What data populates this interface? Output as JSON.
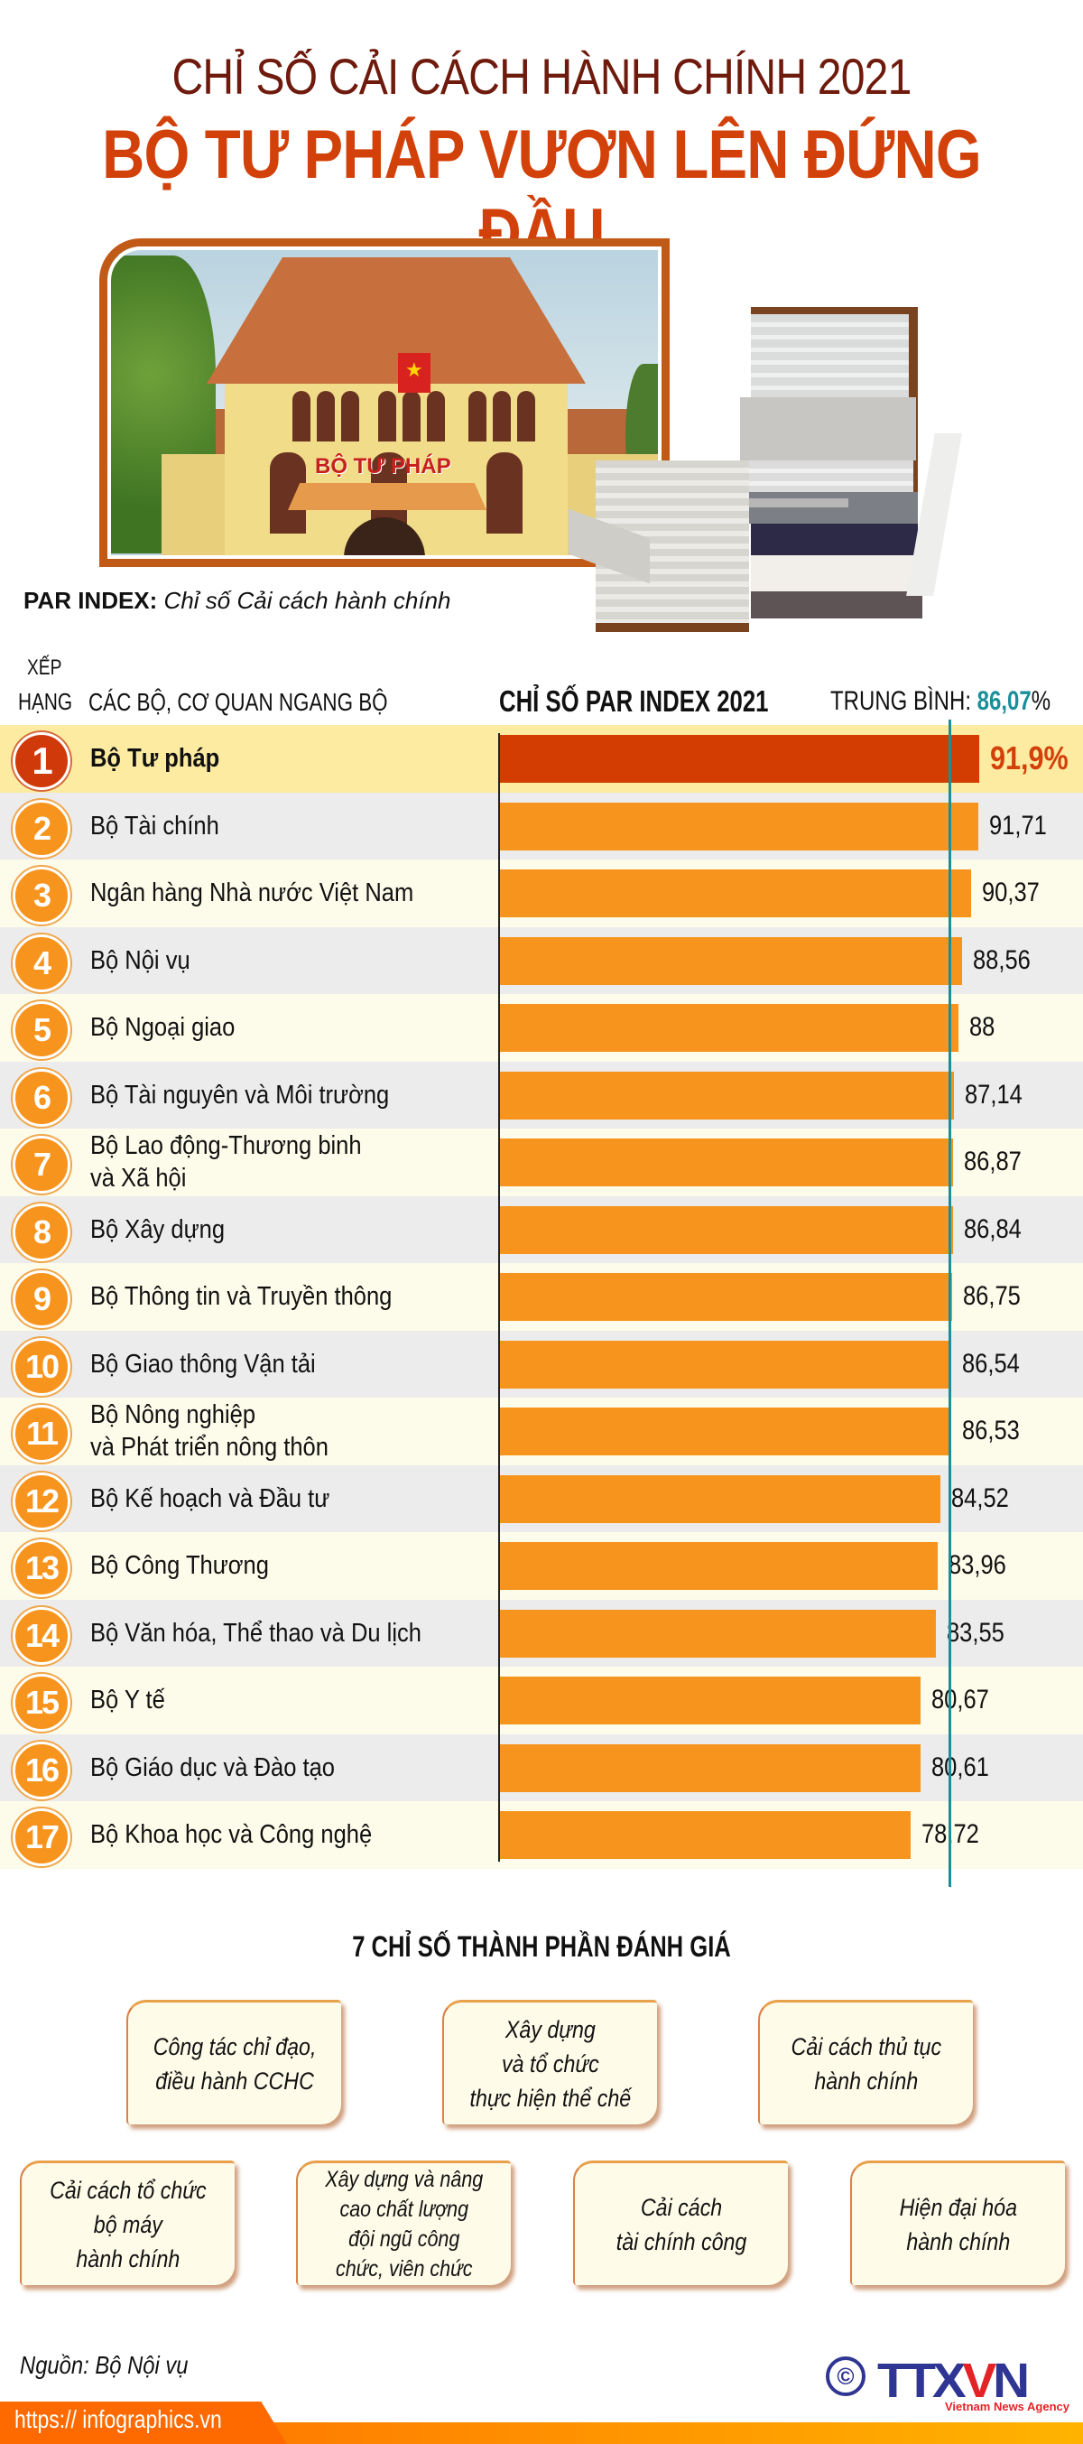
{
  "header": {
    "title_line1": "CHỈ SỐ CẢI CÁCH HÀNH CHÍNH 2021",
    "title_line2": "BỘ TƯ PHÁP VƯƠN LÊN ĐỨNG ĐẦU",
    "photo_sign": "BỘ TƯ PHÁP",
    "par_label_bold": "PAR INDEX:",
    "par_label_italic": "Chỉ số Cải cách hành chính"
  },
  "table": {
    "col_rank_line1": "XẾP",
    "col_rank_line2": "HẠNG",
    "col_name": "CÁC BỘ, CƠ QUAN NGANG BỘ",
    "col_chart": "CHỈ SỐ PAR INDEX 2021",
    "avg_label": "TRUNG BÌNH:",
    "avg_value": "86,07",
    "avg_unit": "%",
    "rows": [
      {
        "rank": "1",
        "name": "Bộ Tư pháp",
        "value_label": "91,9%"
      },
      {
        "rank": "2",
        "name": "Bộ Tài chính",
        "value_label": "91,71"
      },
      {
        "rank": "3",
        "name": "Ngân hàng Nhà nước Việt Nam",
        "value_label": "90,37"
      },
      {
        "rank": "4",
        "name": "Bộ Nội vụ",
        "value_label": "88,56"
      },
      {
        "rank": "5",
        "name": "Bộ Ngoại giao",
        "value_label": "88"
      },
      {
        "rank": "6",
        "name": "Bộ Tài nguyên và Môi trường",
        "value_label": "87,14"
      },
      {
        "rank": "7",
        "name": "Bộ Lao động-Thương binh\nvà Xã hội",
        "value_label": "86,87"
      },
      {
        "rank": "8",
        "name": "Bộ Xây dựng",
        "value_label": "86,84"
      },
      {
        "rank": "9",
        "name": "Bộ Thông tin và Truyền thông",
        "value_label": "86,75"
      },
      {
        "rank": "10",
        "name": "Bộ Giao thông Vận tải",
        "value_label": "86,54"
      },
      {
        "rank": "11",
        "name": "Bộ Nông nghiệp\nvà Phát triển nông thôn",
        "value_label": "86,53"
      },
      {
        "rank": "12",
        "name": "Bộ Kế hoạch và Đầu tư",
        "value_label": "84,52"
      },
      {
        "rank": "13",
        "name": "Bộ Công Thương",
        "value_label": "83,96"
      },
      {
        "rank": "14",
        "name": "Bộ Văn hóa, Thể thao và Du lịch",
        "value_label": "83,55"
      },
      {
        "rank": "15",
        "name": "Bộ Y tế",
        "value_label": "80,67"
      },
      {
        "rank": "16",
        "name": "Bộ Giáo dục và Đào tạo",
        "value_label": "80,61"
      },
      {
        "rank": "17",
        "name": "Bộ Khoa học và Công nghệ",
        "value_label": "78,72"
      }
    ]
  },
  "components": {
    "title": "7 CHỈ SỐ THÀNH PHẦN ĐÁNH GIÁ",
    "items": [
      "Công tác chỉ đạo,\nđiều hành CCHC",
      "Xây dựng\nvà tổ chức\nthực hiện thể chế",
      "Cải cách thủ tục\nhành chính",
      "Cải cách tổ chức\nbộ máy\nhành chính",
      "Xây dựng và nâng\ncao chất lượng\nđội ngũ công\nchức, viên chức",
      "Cải cách\ntài chính công",
      "Hiện đại hóa\nhành chính"
    ]
  },
  "footer": {
    "source": "Nguồn: Bộ Nội vụ",
    "url": "https:// infographics.vn",
    "logo_copyright": "©",
    "logo_text_a": "TTX",
    "logo_text_v": "V",
    "logo_text_b": "N",
    "logo_agency": "Vietnam News Agency"
  },
  "colors": {
    "title_dark": "#6e1a0c",
    "title_accent": "#d3410b",
    "bar_top": "#d43d01",
    "bar": "#f7941d",
    "average_line": "#1a8f9a",
    "row_highlight": "#fdeba1",
    "row_gray": "#ececec",
    "row_cream": "#fdfbe9",
    "footer_orange": "#ff6a00"
  },
  "chart_data": {
    "type": "bar",
    "orientation": "horizontal",
    "title": "CHỈ SỐ PAR INDEX 2021",
    "xlabel": "",
    "ylabel": "CÁC BỘ, CƠ QUAN NGANG BỘ",
    "categories": [
      "Bộ Tư pháp",
      "Bộ Tài chính",
      "Ngân hàng Nhà nước Việt Nam",
      "Bộ Nội vụ",
      "Bộ Ngoại giao",
      "Bộ Tài nguyên và Môi trường",
      "Bộ Lao động-Thương binh và Xã hội",
      "Bộ Xây dựng",
      "Bộ Thông tin và Truyền thông",
      "Bộ Giao thông Vận tải",
      "Bộ Nông nghiệp và Phát triển nông thôn",
      "Bộ Kế hoạch và Đầu tư",
      "Bộ Công Thương",
      "Bộ Văn hóa, Thể thao và Du lịch",
      "Bộ Y tế",
      "Bộ Giáo dục và Đào tạo",
      "Bộ Khoa học và Công nghệ"
    ],
    "values": [
      91.9,
      91.71,
      90.37,
      88.56,
      88,
      87.14,
      86.87,
      86.84,
      86.75,
      86.54,
      86.53,
      84.52,
      83.96,
      83.55,
      80.67,
      80.61,
      78.72
    ],
    "reference_line": {
      "label": "TRUNG BÌNH",
      "value": 86.07
    },
    "highlight_index": 0,
    "unit": "%",
    "grid": false,
    "legend": null
  }
}
